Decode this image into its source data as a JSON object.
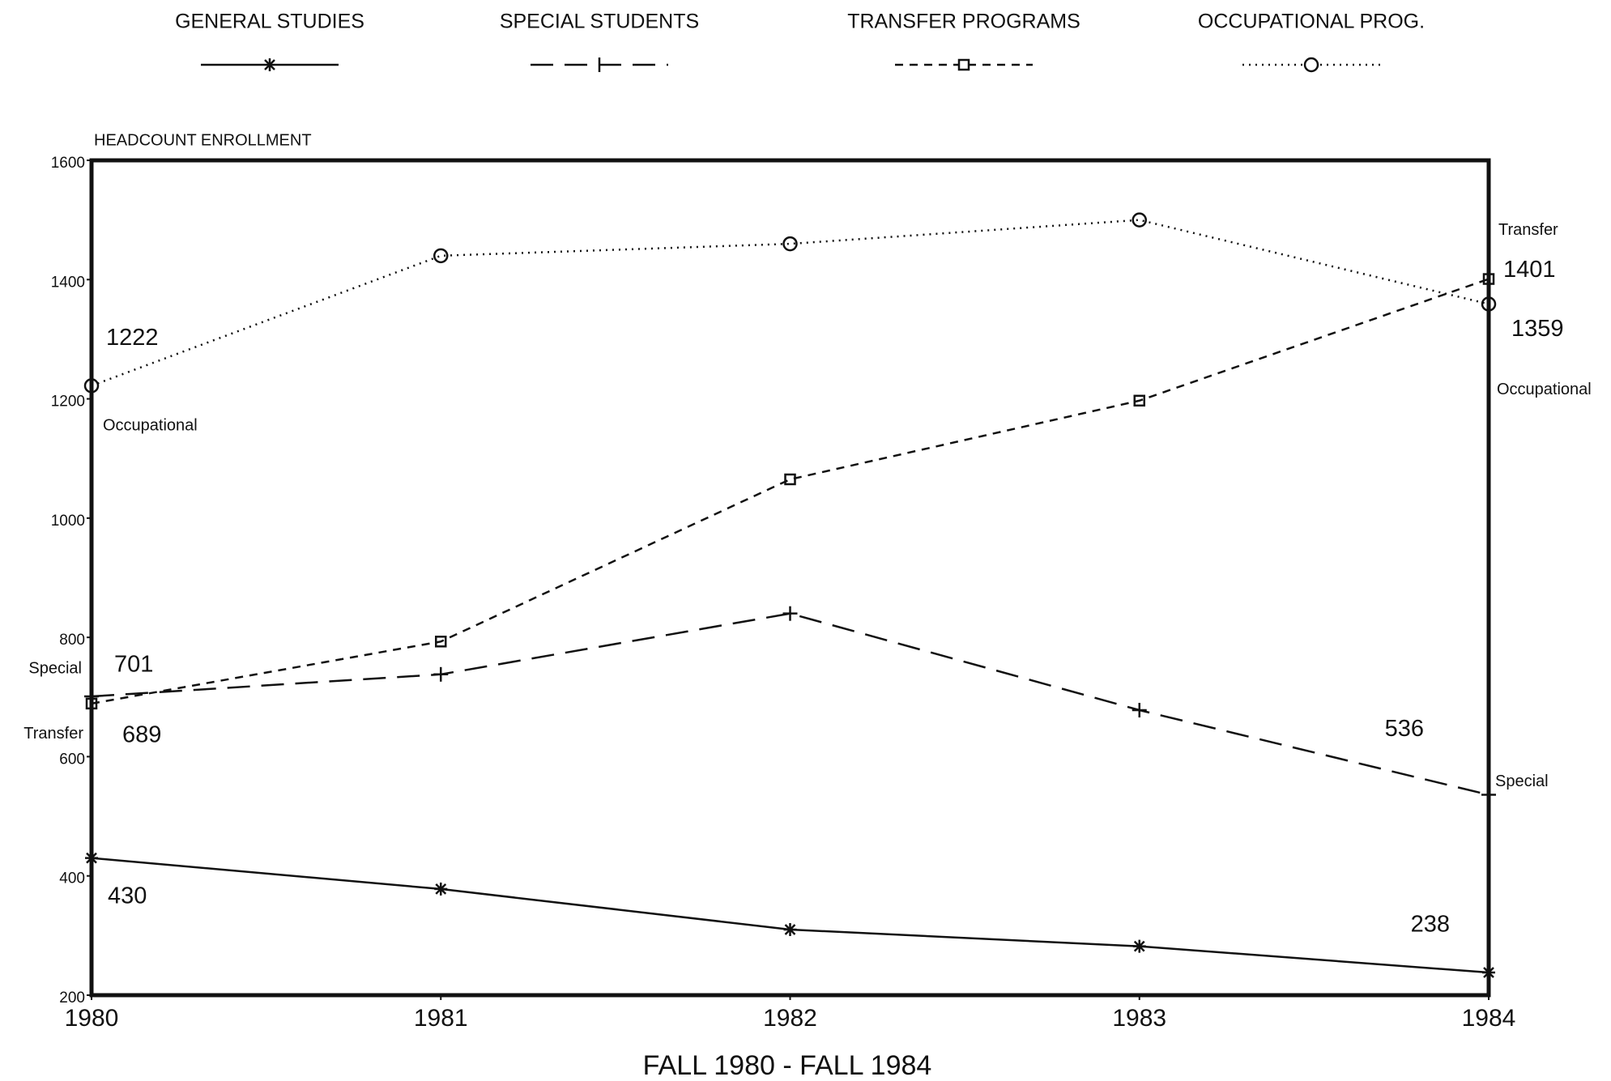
{
  "chart_data": {
    "type": "line",
    "y_label": "HEADCOUNT ENROLLMENT",
    "x_label": "FALL 1980 - FALL 1984",
    "x": [
      1980,
      1981,
      1982,
      1983,
      1984
    ],
    "xlim": [
      1980,
      1984
    ],
    "xticks": [
      1980,
      1981,
      1982,
      1983,
      1984
    ],
    "ylim": [
      200,
      1600
    ],
    "yticks": [
      200,
      400,
      600,
      800,
      1000,
      1200,
      1400,
      1600
    ],
    "legend": "top",
    "series": [
      {
        "name": "GENERAL STUDIES",
        "color": "#111",
        "style": "solid",
        "marker": "star",
        "values": [
          430,
          378,
          310,
          282,
          238
        ],
        "value_labels": [
          "430",
          null,
          null,
          null,
          "238"
        ]
      },
      {
        "name": "SPECIAL STUDENTS",
        "color": "#111",
        "style": "longdash",
        "marker": "plus",
        "values": [
          701,
          738,
          840,
          678,
          536
        ],
        "value_labels": [
          "701",
          null,
          null,
          null,
          "536"
        ],
        "start_tag": "Special",
        "end_tag": "Special"
      },
      {
        "name": "TRANSFER  PROGRAMS",
        "color": "#111",
        "style": "shortdash",
        "marker": "square",
        "values": [
          689,
          793,
          1065,
          1197,
          1401
        ],
        "value_labels": [
          "689",
          null,
          null,
          null,
          "1401"
        ],
        "start_tag": "Transfer",
        "end_tag": "Transfer"
      },
      {
        "name": "OCCUPATIONAL PROG.",
        "color": "#111",
        "style": "dotted",
        "marker": "circle",
        "values": [
          1222,
          1440,
          1460,
          1500,
          1359
        ],
        "value_labels": [
          "1222",
          null,
          null,
          null,
          "1359"
        ],
        "start_tag": "Occupational",
        "end_tag": "Occupational"
      }
    ]
  }
}
